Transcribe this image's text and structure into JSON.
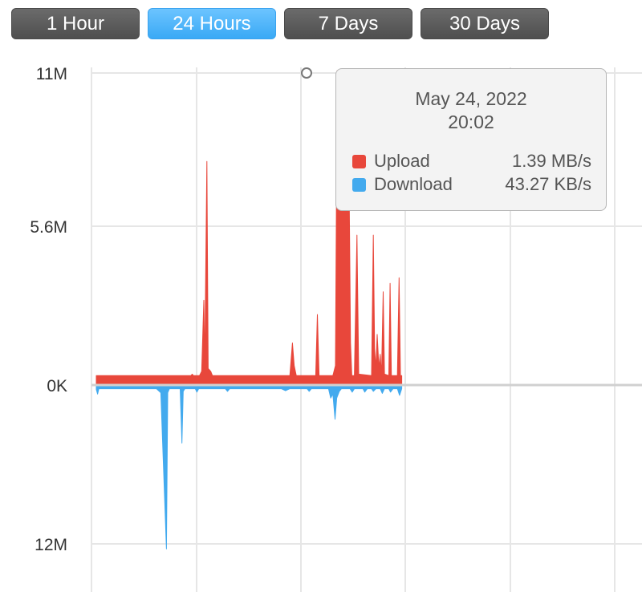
{
  "tabs": [
    {
      "label": "1 Hour",
      "active": false
    },
    {
      "label": "24 Hours",
      "active": true
    },
    {
      "label": "7 Days",
      "active": false
    },
    {
      "label": "30 Days",
      "active": false
    }
  ],
  "tooltip": {
    "date": "May 24, 2022",
    "time": "20:02",
    "rows": [
      {
        "name": "Upload",
        "value": "1.39 MB/s",
        "color": "#e8473b"
      },
      {
        "name": "Download",
        "value": "43.27 KB/s",
        "color": "#43aaee"
      }
    ]
  },
  "chart_data": {
    "type": "area",
    "title": "",
    "xlabel": "",
    "ylabel": "",
    "grid": true,
    "upload_ticks": [
      {
        "value": 11000000,
        "label": "11M"
      },
      {
        "value": 5600000,
        "label": "5.6M"
      },
      {
        "value": 0,
        "label": "0K"
      }
    ],
    "download_ticks": [
      {
        "value": 12000000,
        "label": "12M"
      }
    ],
    "upload_max": 11000000,
    "download_max": 12000000,
    "x_range": [
      0,
      100
    ],
    "series": [
      {
        "name": "Upload",
        "color": "#e8473b",
        "points": [
          [
            0,
            0.25
          ],
          [
            17,
            0.25
          ],
          [
            19,
            0.25
          ],
          [
            22,
            0.25
          ],
          [
            22.3,
            0.3
          ],
          [
            22.6,
            0.25
          ],
          [
            24,
            0.25
          ],
          [
            24.5,
            0.4
          ],
          [
            25,
            2.9
          ],
          [
            25.2,
            0.5
          ],
          [
            25.7,
            7.8
          ],
          [
            26,
            0.5
          ],
          [
            26.6,
            0.4
          ],
          [
            27,
            0.25
          ],
          [
            45,
            0.25
          ],
          [
            45.6,
            1.4
          ],
          [
            46,
            0.6
          ],
          [
            46.5,
            0.25
          ],
          [
            51,
            0.25
          ],
          [
            51.4,
            2.4
          ],
          [
            51.8,
            0.25
          ],
          [
            55,
            0.25
          ],
          [
            55.6,
            0.6
          ],
          [
            56,
            11
          ],
          [
            56.3,
            10.5
          ],
          [
            56.6,
            9.8
          ],
          [
            57,
            11
          ],
          [
            57.4,
            10.8
          ],
          [
            57.8,
            9.6
          ],
          [
            58.2,
            7.4
          ],
          [
            58.6,
            10
          ],
          [
            59.1,
            1.4
          ],
          [
            59.4,
            0.25
          ],
          [
            60,
            0.25
          ],
          [
            60.6,
            5.2
          ],
          [
            61,
            0.3
          ],
          [
            64,
            0.25
          ],
          [
            64.4,
            5.2
          ],
          [
            64.7,
            1.2
          ],
          [
            65,
            0.5
          ],
          [
            65.3,
            1.7
          ],
          [
            65.7,
            0.5
          ],
          [
            66,
            1
          ],
          [
            66.3,
            0.25
          ],
          [
            66.7,
            3.2
          ],
          [
            67,
            0.3
          ],
          [
            68,
            0.25
          ],
          [
            68.3,
            3.5
          ],
          [
            68.6,
            0.25
          ],
          [
            70,
            0.25
          ],
          [
            70.4,
            3.7
          ],
          [
            70.7,
            0.25
          ],
          [
            71,
            0.25
          ]
        ]
      },
      {
        "name": "Download",
        "color": "#43aaee",
        "points": [
          [
            0,
            0.15
          ],
          [
            0.3,
            0.5
          ],
          [
            0.6,
            0.1
          ],
          [
            14,
            0.1
          ],
          [
            15,
            0.4
          ],
          [
            16.3,
            12.2
          ],
          [
            16.6,
            0.4
          ],
          [
            17,
            0.1
          ],
          [
            19.5,
            0.1
          ],
          [
            19.9,
            4.2
          ],
          [
            20.2,
            0.3
          ],
          [
            20.6,
            0.1
          ],
          [
            23,
            0.1
          ],
          [
            23.4,
            0.35
          ],
          [
            23.8,
            0.1
          ],
          [
            30,
            0.1
          ],
          [
            30.5,
            0.3
          ],
          [
            31,
            0.1
          ],
          [
            43,
            0.1
          ],
          [
            44,
            0.25
          ],
          [
            45,
            0.1
          ],
          [
            49,
            0.1
          ],
          [
            49.5,
            0.3
          ],
          [
            50,
            0.1
          ],
          [
            54,
            0.1
          ],
          [
            54.5,
            0.8
          ],
          [
            55,
            0.5
          ],
          [
            55.5,
            2.4
          ],
          [
            55.9,
            0.8
          ],
          [
            56.5,
            0.3
          ],
          [
            57,
            0.1
          ],
          [
            59,
            0.1
          ],
          [
            59.5,
            0.35
          ],
          [
            60,
            0.1
          ],
          [
            62,
            0.1
          ],
          [
            62.4,
            0.35
          ],
          [
            63,
            0.1
          ],
          [
            64,
            0.1
          ],
          [
            64.4,
            0.3
          ],
          [
            65,
            0.1
          ],
          [
            66,
            0.1
          ],
          [
            66.5,
            0.45
          ],
          [
            67,
            0.1
          ],
          [
            68,
            0.1
          ],
          [
            68.4,
            0.35
          ],
          [
            69,
            0.1
          ],
          [
            70,
            0.1
          ],
          [
            70.5,
            0.6
          ],
          [
            71,
            0.1
          ]
        ]
      }
    ]
  }
}
